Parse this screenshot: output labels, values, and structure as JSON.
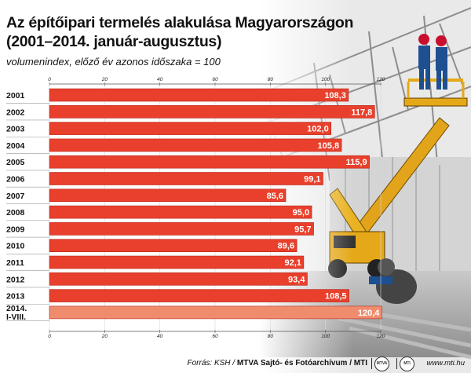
{
  "title_line1": "Az építőipari termelés alakulása Magyarországon",
  "title_line2": "(2001–2014. január-augusztus)",
  "subtitle": "volumenindex, előző év azonos időszaka = 100",
  "footer": {
    "source_prefix": "Forrás: KSH / ",
    "source_org": "MTVA Sajtó- és Fotóarchívum / MTI",
    "website": "www.mti.hu",
    "logo1": "MTVA",
    "logo2": "MTI"
  },
  "colors": {
    "bar": "#e8402c",
    "bar_highlight": "#f08c6e",
    "bar_edge": "#b8261a"
  },
  "chart_data": {
    "type": "bar",
    "orientation": "horizontal",
    "title": "Az építőipari termelés alakulása Magyarországon (2001–2014. január-augusztus)",
    "subtitle": "volumenindex, előző év azonos időszaka = 100",
    "categories": [
      "2001",
      "2002",
      "2003",
      "2004",
      "2005",
      "2006",
      "2007",
      "2008",
      "2009",
      "2010",
      "2011",
      "2012",
      "2013",
      "2014.\nI-VIII."
    ],
    "values": [
      108.3,
      117.8,
      102.0,
      105.8,
      115.9,
      99.1,
      85.6,
      95.0,
      95.7,
      89.6,
      92.1,
      93.4,
      108.5,
      120.4
    ],
    "value_labels": [
      "108,3",
      "117,8",
      "102,0",
      "105,8",
      "115,9",
      "99,1",
      "85,6",
      "95,0",
      "95,7",
      "89,6",
      "92,1",
      "93,4",
      "108,5",
      "120,4"
    ],
    "highlight_index": 13,
    "xlim": [
      0,
      120
    ],
    "xticks": [
      0,
      20,
      40,
      60,
      80,
      100,
      120
    ],
    "tick_positions": "top and bottom",
    "grid": true
  }
}
